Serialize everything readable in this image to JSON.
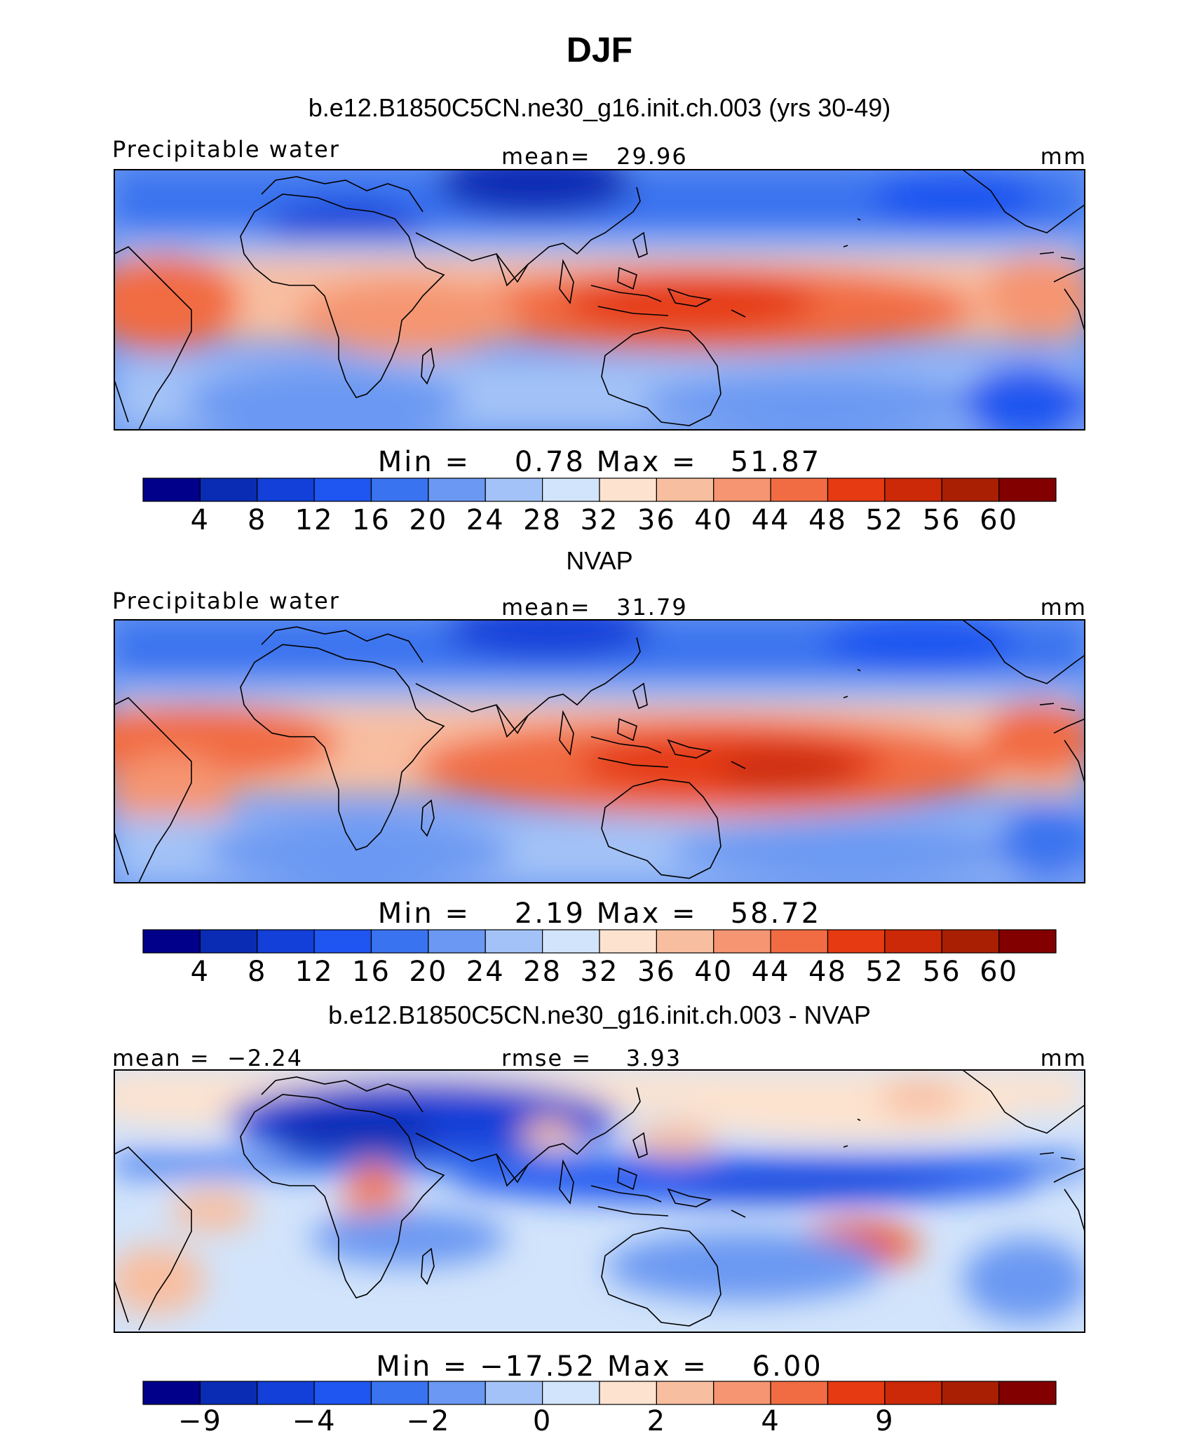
{
  "season": "DJF",
  "chart_data": [
    {
      "type": "heatmap",
      "title": "b.e12.B1850C5CN.ne30_g16.init.ch.003 (yrs 30-49)",
      "left_label": "Precipitable water",
      "center_label": "mean=   29.96",
      "units": "mm",
      "stats": "Min =    0.78 Max =   51.87",
      "mean": 29.96,
      "min": 0.78,
      "max": 51.87,
      "colorbar": {
        "levels": [
          4,
          8,
          12,
          16,
          20,
          24,
          28,
          32,
          36,
          40,
          44,
          48,
          52,
          56,
          60
        ],
        "tick_labels": [
          "4",
          "8",
          "12",
          "16",
          "20",
          "24",
          "28",
          "32",
          "36",
          "40",
          "44",
          "48",
          "52",
          "56",
          "60"
        ]
      }
    },
    {
      "type": "heatmap",
      "title": "NVAP",
      "left_label": "Precipitable water",
      "center_label": "mean=   31.79",
      "units": "mm",
      "stats": "Min =    2.19 Max =   58.72",
      "mean": 31.79,
      "min": 2.19,
      "max": 58.72,
      "colorbar": {
        "levels": [
          4,
          8,
          12,
          16,
          20,
          24,
          28,
          32,
          36,
          40,
          44,
          48,
          52,
          56,
          60
        ],
        "tick_labels": [
          "4",
          "8",
          "12",
          "16",
          "20",
          "24",
          "28",
          "32",
          "36",
          "40",
          "44",
          "48",
          "52",
          "56",
          "60"
        ]
      }
    },
    {
      "type": "heatmap",
      "title": "b.e12.B1850C5CN.ne30_g16.init.ch.003 - NVAP",
      "left_label": "mean =  −2.24",
      "center_label": "rmse =    3.93",
      "units": "mm",
      "stats": "Min = −17.52 Max =    6.00",
      "mean": -2.24,
      "rmse": 3.93,
      "min": -17.52,
      "max": 6.0,
      "colorbar": {
        "levels": [
          -9,
          -6,
          -4,
          -3,
          -2,
          -1,
          0,
          1,
          2,
          3,
          4,
          6,
          9,
          12
        ],
        "tick_labels": [
          "−9",
          "−4",
          "−2",
          "0",
          "2",
          "4",
          "9"
        ]
      }
    }
  ],
  "colors": [
    "#00008b",
    "#0a2cb4",
    "#1240d8",
    "#1f55f0",
    "#3a73ef",
    "#6a98f2",
    "#a3c2f7",
    "#d2e4fb",
    "#fde3cf",
    "#f8bea0",
    "#f59571",
    "#f16c43",
    "#e53a12",
    "#cc2908",
    "#a81f04",
    "#820000"
  ]
}
